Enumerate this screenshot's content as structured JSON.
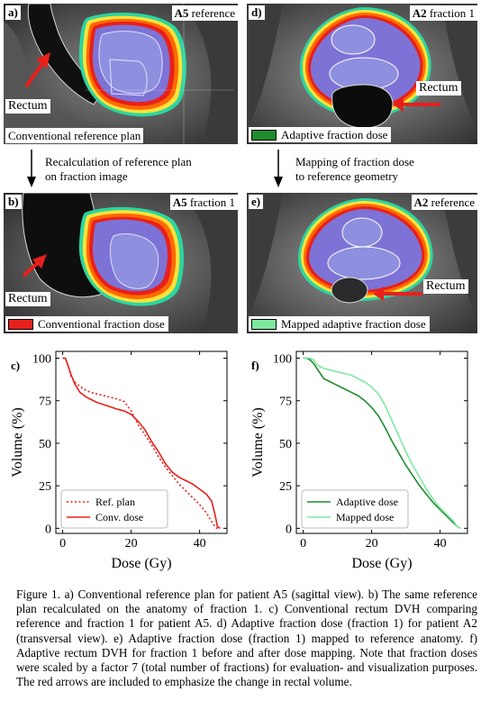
{
  "panels": {
    "a": {
      "letter": "a)",
      "tag_bold": "A5",
      "tag_rest": "reference",
      "bottom_label": "Conventional reference plan",
      "rectum_label": "Rectum"
    },
    "b": {
      "letter": "b)",
      "tag_bold": "A5",
      "tag_rest": "fraction 1",
      "legend_label": "Conventional fraction dose",
      "legend_color": "#e8201c",
      "rectum_label": "Rectum"
    },
    "d": {
      "letter": "d)",
      "tag_bold": "A2",
      "tag_rest": "fraction 1",
      "legend_label": "Adaptive fraction dose",
      "legend_color": "#1f8c2e",
      "rectum_label": "Rectum"
    },
    "e": {
      "letter": "e)",
      "tag_bold": "A2",
      "tag_rest": "reference",
      "legend_label": "Mapped adaptive fraction dose",
      "legend_color": "#7ee8a0",
      "rectum_label": "Rectum"
    }
  },
  "arrows": {
    "left_text_line1": "Recalculation of reference plan",
    "left_text_line2": "on  fraction image",
    "right_text_line1": "Mapping of fraction dose",
    "right_text_line2": "to reference geometry"
  },
  "colors": {
    "dose_red": "#e8201c",
    "dose_green": "#1f8c2e",
    "dose_light_green": "#7ee8a0",
    "arrow_red": "#e8201c"
  },
  "chart_data": [
    {
      "type": "line",
      "panel": "c)",
      "xlabel": "Dose (Gy)",
      "ylabel": "Volume (%)",
      "xlim": [
        -2,
        48
      ],
      "ylim": [
        -3,
        104
      ],
      "xticks": [
        0,
        20,
        40
      ],
      "yticks": [
        0,
        25,
        50,
        75,
        100
      ],
      "legend_position": "bottom-left",
      "series": [
        {
          "name": "Ref. plan",
          "style": "dotted",
          "color": "#e8201c",
          "x": [
            0,
            0.8,
            1.5,
            2.5,
            4,
            6,
            8,
            10,
            12,
            14,
            16,
            18,
            20,
            22,
            24,
            26,
            28,
            30,
            32,
            34,
            36,
            38,
            40,
            42,
            43.5,
            44.5,
            45,
            46
          ],
          "y": [
            100,
            100,
            96,
            89,
            85,
            82,
            80,
            79,
            78,
            77,
            76,
            74.5,
            69,
            61,
            55,
            49,
            42,
            36,
            31,
            26,
            22,
            18,
            14,
            9,
            4,
            1,
            0,
            0
          ]
        },
        {
          "name": "Conv. dose",
          "style": "solid",
          "color": "#e8201c",
          "x": [
            0,
            0.8,
            1.5,
            2.5,
            3.5,
            5,
            7,
            10,
            13,
            16,
            18,
            20,
            22,
            24,
            26,
            28,
            30,
            32,
            34,
            36,
            38,
            40,
            42,
            43.5,
            44.5,
            45.2,
            46
          ],
          "y": [
            100,
            100,
            96,
            90,
            85,
            80,
            77,
            74,
            72,
            70,
            69,
            67,
            63,
            58,
            51,
            45,
            38,
            33,
            30,
            28,
            26,
            23,
            20,
            16,
            8,
            1,
            0
          ]
        }
      ]
    },
    {
      "type": "line",
      "panel": "f)",
      "xlabel": "Dose (Gy)",
      "ylabel": "Volume (%)",
      "xlim": [
        -2,
        48
      ],
      "ylim": [
        -3,
        104
      ],
      "xticks": [
        0,
        20,
        40
      ],
      "yticks": [
        0,
        25,
        50,
        75,
        100
      ],
      "legend_position": "bottom-left",
      "series": [
        {
          "name": "Adaptive dose",
          "style": "solid",
          "color": "#1f8c2e",
          "x": [
            0,
            1,
            2,
            3,
            4,
            5,
            6,
            8,
            10,
            12,
            14,
            16,
            18,
            20,
            22,
            24,
            26,
            28,
            30,
            32,
            34,
            36,
            38,
            40,
            42,
            44,
            45,
            46
          ],
          "y": [
            100,
            100,
            99,
            97,
            94,
            91,
            88,
            86,
            84,
            82,
            80,
            78,
            75,
            71,
            66,
            59,
            51,
            44,
            37,
            31,
            25,
            20,
            15,
            11,
            7,
            3,
            1,
            0
          ]
        },
        {
          "name": "Mapped dose",
          "style": "solid",
          "color": "#7ee8a0",
          "x": [
            0,
            2,
            3,
            4,
            6,
            8,
            10,
            12,
            14,
            16,
            18,
            20,
            22,
            24,
            26,
            28,
            30,
            32,
            34,
            36,
            38,
            40,
            42,
            44,
            45,
            46
          ],
          "y": [
            100,
            100,
            99,
            96,
            94,
            93,
            92,
            91,
            90,
            88,
            86,
            83,
            79,
            72,
            63,
            54,
            45,
            37,
            30,
            23,
            17,
            12,
            8,
            4,
            1,
            0
          ]
        }
      ]
    }
  ],
  "caption": "Figure 1. a) Conventional reference plan for patient A5 (sagittal view). b) The same reference plan recalculated on the anatomy of fraction 1. c) Conventional rectum DVH comparing reference and fraction 1 for patient A5. d) Adaptive fraction dose (fraction 1) for patient  A2 (transversal view). e) Adaptive fraction dose (fraction 1) mapped to reference anatomy. f) Adaptive rectum DVH for fraction 1 before and after dose mapping. Note that fraction doses were scaled by a factor 7 (total number of fractions) for evaluation- and visualization purposes. The red arrows are included to emphasize the change in rectal volume."
}
